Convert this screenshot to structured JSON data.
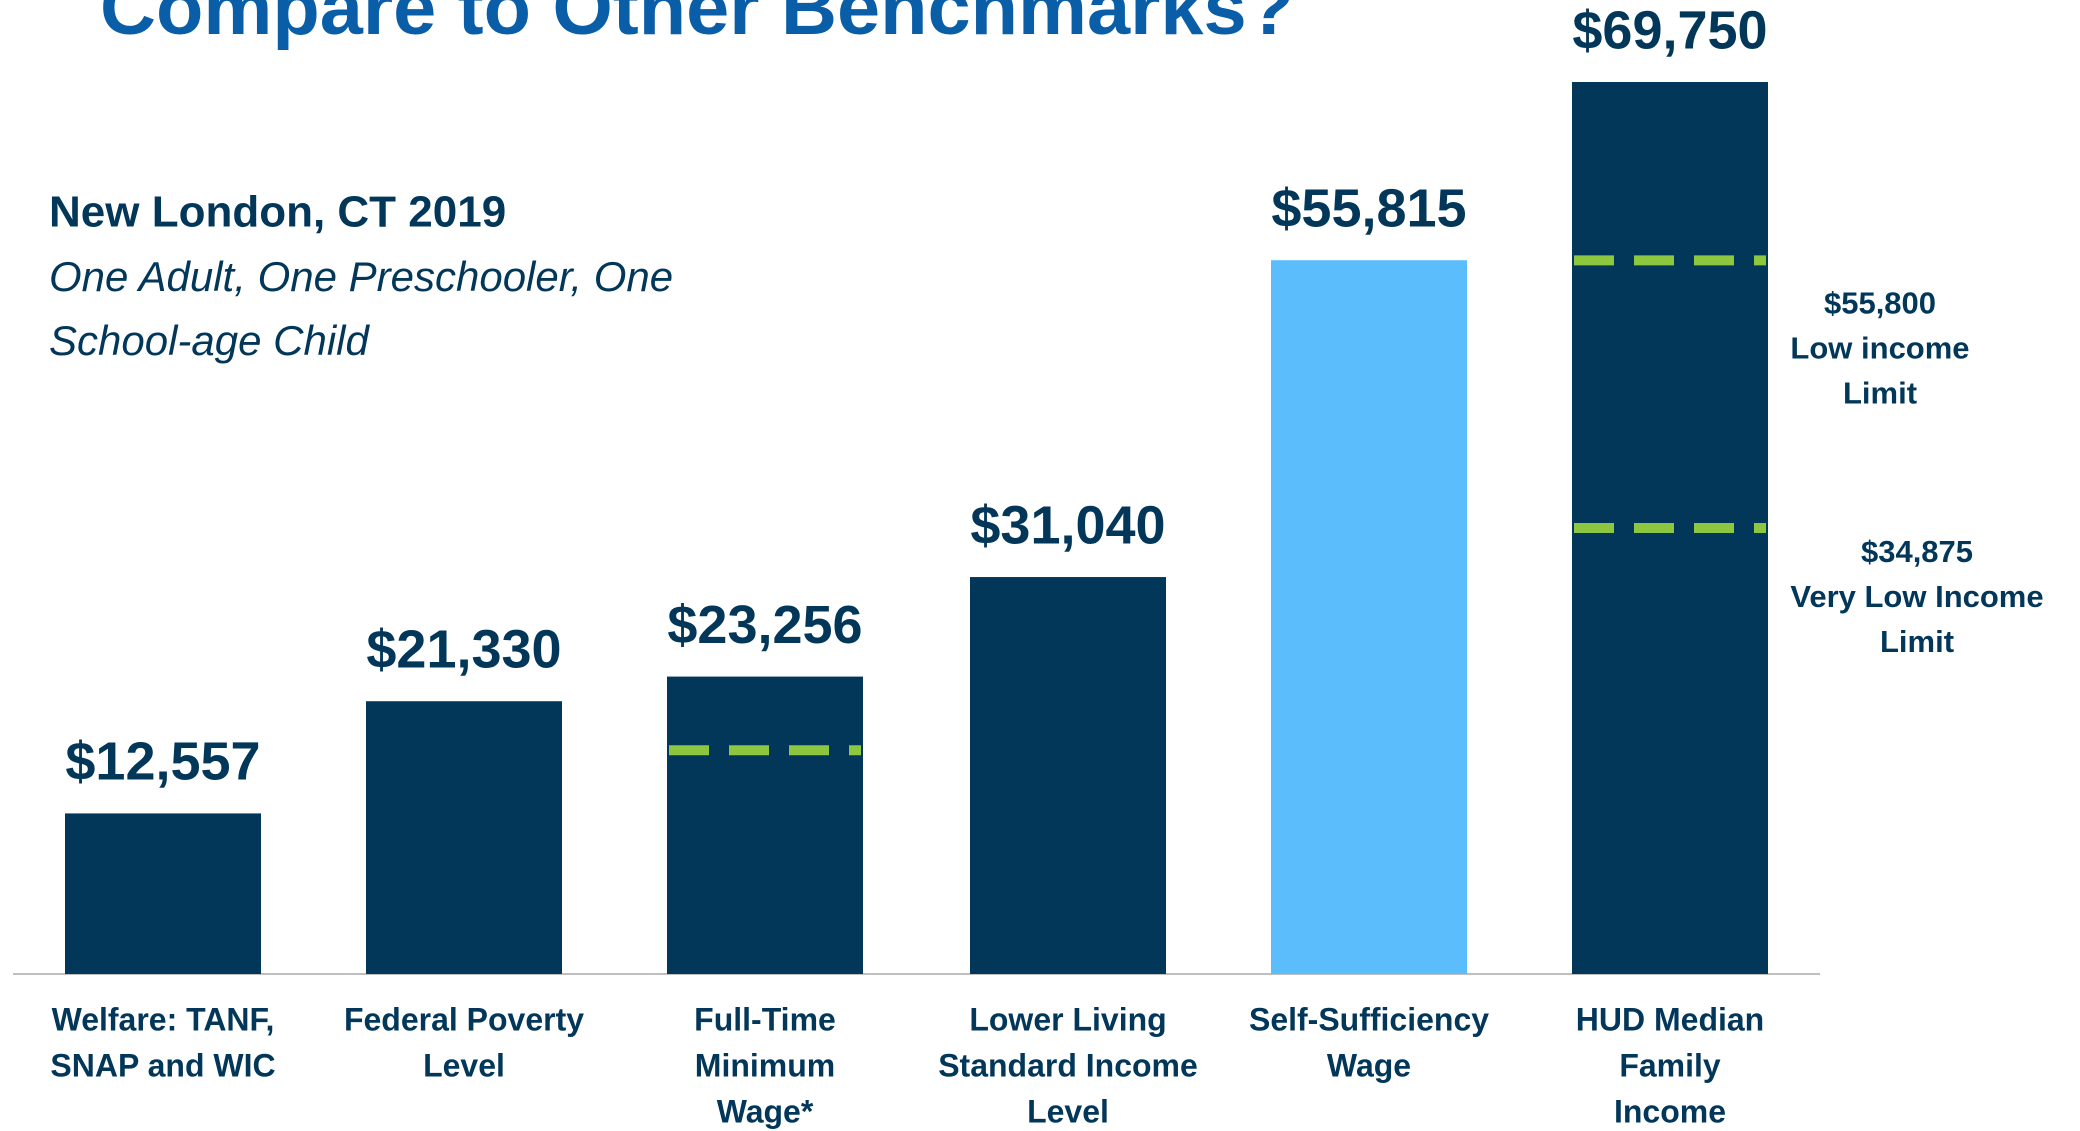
{
  "chart_data": {
    "type": "bar",
    "title": "Compare to Other Benchmarks?",
    "subtitle": "New London, CT 2019",
    "description": [
      "One Adult, One Preschooler, One",
      "School-age Child"
    ],
    "categories": [
      [
        "Welfare: TANF,",
        "SNAP and WIC"
      ],
      [
        "Federal Poverty",
        "Level"
      ],
      [
        "Full-Time",
        "Minimum",
        "Wage*"
      ],
      [
        "Lower Living",
        "Standard Income",
        "Level"
      ],
      [
        "Self-Sufficiency",
        "Wage"
      ],
      [
        "HUD Median",
        "Family",
        "Income"
      ]
    ],
    "values": [
      12557,
      21330,
      23256,
      31040,
      55815,
      69750
    ],
    "value_labels": [
      "$12,557",
      "$21,330",
      "$23,256",
      "$31,040",
      "$55,815",
      "$69,750"
    ],
    "colors": [
      "#02375a",
      "#02375a",
      "#02375a",
      "#02375a",
      "#5bbdfb",
      "#02375a"
    ],
    "reference_lines": [
      {
        "category": 2,
        "value": 17500,
        "color": "#8dc63f"
      },
      {
        "category": 5,
        "value": 55800,
        "color": "#8dc63f",
        "label": [
          "$55,800",
          "Low income",
          "Limit"
        ]
      },
      {
        "category": 5,
        "value": 34875,
        "color": "#8dc63f",
        "label": [
          "$34,875",
          "Very Low Income",
          "Limit"
        ]
      }
    ]
  }
}
